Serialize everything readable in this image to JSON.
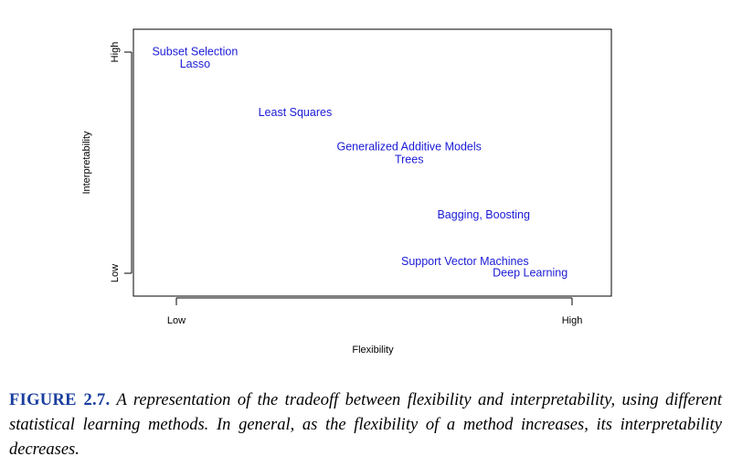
{
  "chart_data": {
    "type": "scatter",
    "xlabel": "Flexibility",
    "ylabel": "Interpretability",
    "xlim": [
      0,
      10
    ],
    "ylim": [
      0,
      10
    ],
    "x_ticks": [
      {
        "value": 1,
        "label": "Low"
      },
      {
        "value": 9.5,
        "label": "High"
      }
    ],
    "y_ticks": [
      {
        "value": 1,
        "label": "Low"
      },
      {
        "value": 9,
        "label": "High"
      }
    ],
    "points": [
      {
        "label": "Subset Selection",
        "x": 1.4,
        "y": 9.0
      },
      {
        "label": "Lasso",
        "x": 1.4,
        "y": 8.55
      },
      {
        "label": "Least Squares",
        "x": 3.55,
        "y": 6.8
      },
      {
        "label": "Generalized Additive Models",
        "x": 6.0,
        "y": 5.55
      },
      {
        "label": "Trees",
        "x": 6.0,
        "y": 5.1
      },
      {
        "label": "Bagging, Boosting",
        "x": 7.6,
        "y": 3.1
      },
      {
        "label": "Support Vector Machines",
        "x": 7.2,
        "y": 1.4
      },
      {
        "label": "Deep Learning",
        "x": 8.6,
        "y": 1.0
      }
    ],
    "point_color": "#1a1ad6",
    "grid": false,
    "legend": "none"
  },
  "caption": {
    "label": "FIGURE 2.7.",
    "text": "A representation of the tradeoff between flexibility and interpretability, using different statistical learning methods. In general, as the flexibility of a method increases, its interpretability decreases."
  },
  "colors": {
    "caption_label": "#1a3f9e",
    "axis": "#000000"
  }
}
